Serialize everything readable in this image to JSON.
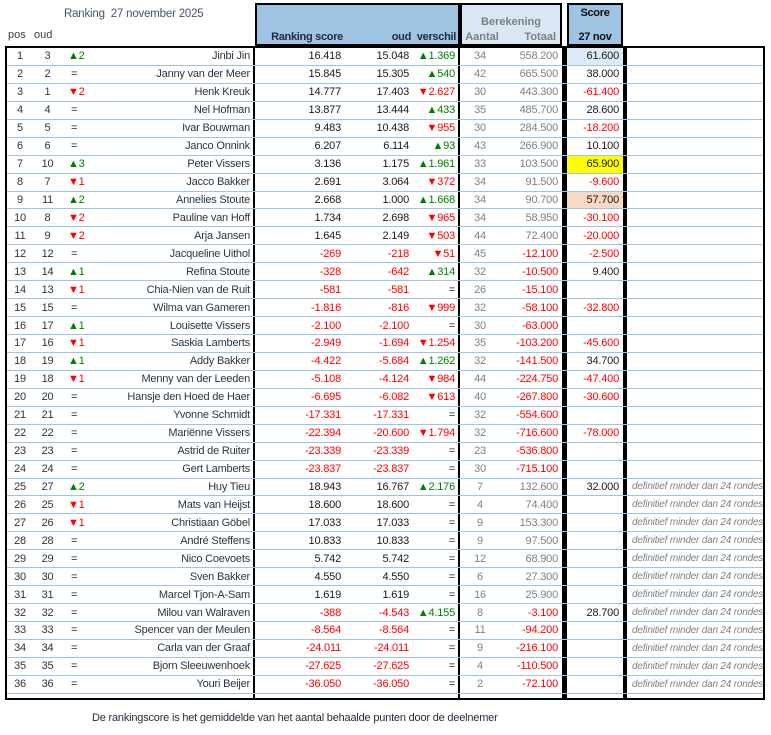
{
  "title": "Ranking  27 november 2025",
  "footer": "De rankingscore is het gemiddelde van het aantal behaalde punten door de deelnemer",
  "colors": {
    "header_blue": "#9fc3e3",
    "header_light_blue": "#d9e6f3",
    "grid_line_blue": "#9dc3e6",
    "negative_red": "#ff0000",
    "positive_green": "#008000",
    "muted_gray": "#7f7f7f",
    "highlight_yellow": "#ffff00",
    "highlight_peach": "#f8d9c4",
    "highlight_blue": "#dcebf7"
  },
  "table": {
    "corner_labels": {
      "pos": "pos",
      "oud": "oud"
    },
    "header_groups": {
      "scores": {
        "labels": [
          "Ranking score",
          "oud",
          "verschil"
        ]
      },
      "berekening": {
        "title": "Berekening",
        "labels": [
          "Aantal",
          "Totaal"
        ]
      },
      "score_col": {
        "line1": "Score",
        "line2": "27 nov"
      }
    },
    "rows": [
      {
        "pos": "1",
        "oud": "3",
        "change": "▲2",
        "name": "Jinbi Jin",
        "score": "16.418",
        "score_old": "15.048",
        "diff": "▲1.369",
        "aantal": "34",
        "totaal": "558.200",
        "score_27nov": "61.600",
        "highlight": "blue",
        "note": ""
      },
      {
        "pos": "2",
        "oud": "2",
        "change": "=",
        "name": "Janny van der Meer",
        "score": "15.845",
        "score_old": "15.305",
        "diff": "▲540",
        "aantal": "42",
        "totaal": "665.500",
        "score_27nov": "38.000",
        "highlight": "",
        "note": ""
      },
      {
        "pos": "3",
        "oud": "1",
        "change": "▼2",
        "name": "Henk Kreuk",
        "score": "14.777",
        "score_old": "17.403",
        "diff": "▼2.627",
        "aantal": "30",
        "totaal": "443.300",
        "score_27nov": "-61.400",
        "highlight": "",
        "note": ""
      },
      {
        "pos": "4",
        "oud": "4",
        "change": "=",
        "name": "Nel Hofman",
        "score": "13.877",
        "score_old": "13.444",
        "diff": "▲433",
        "aantal": "35",
        "totaal": "485.700",
        "score_27nov": "28.600",
        "highlight": "",
        "note": ""
      },
      {
        "pos": "5",
        "oud": "5",
        "change": "=",
        "name": "Ivar Bouwman",
        "score": "9.483",
        "score_old": "10.438",
        "diff": "▼955",
        "aantal": "30",
        "totaal": "284.500",
        "score_27nov": "-18.200",
        "highlight": "",
        "note": ""
      },
      {
        "pos": "6",
        "oud": "6",
        "change": "=",
        "name": "Janco Onnink",
        "score": "6.207",
        "score_old": "6.114",
        "diff": "▲93",
        "aantal": "43",
        "totaal": "266.900",
        "score_27nov": "10.100",
        "highlight": "",
        "note": ""
      },
      {
        "pos": "7",
        "oud": "10",
        "change": "▲3",
        "name": "Peter Vissers",
        "score": "3.136",
        "score_old": "1.175",
        "diff": "▲1.961",
        "aantal": "33",
        "totaal": "103.500",
        "score_27nov": "65.900",
        "highlight": "yellow",
        "note": ""
      },
      {
        "pos": "8",
        "oud": "7",
        "change": "▼1",
        "name": "Jacco Bakker",
        "score": "2.691",
        "score_old": "3.064",
        "diff": "▼372",
        "aantal": "34",
        "totaal": "91.500",
        "score_27nov": "-9.600",
        "highlight": "",
        "note": ""
      },
      {
        "pos": "9",
        "oud": "11",
        "change": "▲2",
        "name": "Annelies Stoute",
        "score": "2.668",
        "score_old": "1.000",
        "diff": "▲1.668",
        "aantal": "34",
        "totaal": "90.700",
        "score_27nov": "57.700",
        "highlight": "peach",
        "note": ""
      },
      {
        "pos": "10",
        "oud": "8",
        "change": "▼2",
        "name": "Pauline van Hoff",
        "score": "1.734",
        "score_old": "2.698",
        "diff": "▼965",
        "aantal": "34",
        "totaal": "58.950",
        "score_27nov": "-30.100",
        "highlight": "",
        "note": ""
      },
      {
        "pos": "11",
        "oud": "9",
        "change": "▼2",
        "name": "Arja Jansen",
        "score": "1.645",
        "score_old": "2.149",
        "diff": "▼503",
        "aantal": "44",
        "totaal": "72.400",
        "score_27nov": "-20.000",
        "highlight": "",
        "note": ""
      },
      {
        "pos": "12",
        "oud": "12",
        "change": "=",
        "name": "Jacqueline Uithol",
        "score": "-269",
        "score_old": "-218",
        "diff": "▼51",
        "aantal": "45",
        "totaal": "-12.100",
        "score_27nov": "-2.500",
        "highlight": "",
        "note": ""
      },
      {
        "pos": "13",
        "oud": "14",
        "change": "▲1",
        "name": "Refina Stoute",
        "score": "-328",
        "score_old": "-642",
        "diff": "▲314",
        "aantal": "32",
        "totaal": "-10.500",
        "score_27nov": "9.400",
        "highlight": "",
        "note": ""
      },
      {
        "pos": "14",
        "oud": "13",
        "change": "▼1",
        "name": "Chia-Nien van de Ruit",
        "score": "-581",
        "score_old": "-581",
        "diff": "=",
        "aantal": "26",
        "totaal": "-15.100",
        "score_27nov": "",
        "highlight": "",
        "note": ""
      },
      {
        "pos": "15",
        "oud": "15",
        "change": "=",
        "name": "Wilma van Gameren",
        "score": "-1.816",
        "score_old": "-816",
        "diff": "▼999",
        "aantal": "32",
        "totaal": "-58.100",
        "score_27nov": "-32.800",
        "highlight": "",
        "note": ""
      },
      {
        "pos": "16",
        "oud": "17",
        "change": "▲1",
        "name": "Louisette Vissers",
        "score": "-2.100",
        "score_old": "-2.100",
        "diff": "=",
        "aantal": "30",
        "totaal": "-63.000",
        "score_27nov": "",
        "highlight": "",
        "note": ""
      },
      {
        "pos": "17",
        "oud": "16",
        "change": "▼1",
        "name": "Saskia Lamberts",
        "score": "-2.949",
        "score_old": "-1.694",
        "diff": "▼1.254",
        "aantal": "35",
        "totaal": "-103.200",
        "score_27nov": "-45.600",
        "highlight": "",
        "note": ""
      },
      {
        "pos": "18",
        "oud": "19",
        "change": "▲1",
        "name": "Addy Bakker",
        "score": "-4.422",
        "score_old": "-5.684",
        "diff": "▲1.262",
        "aantal": "32",
        "totaal": "-141.500",
        "score_27nov": "34.700",
        "highlight": "",
        "note": ""
      },
      {
        "pos": "19",
        "oud": "18",
        "change": "▼1",
        "name": "Menny van der Leeden",
        "score": "-5.108",
        "score_old": "-4.124",
        "diff": "▼984",
        "aantal": "44",
        "totaal": "-224.750",
        "score_27nov": "-47.400",
        "highlight": "",
        "note": ""
      },
      {
        "pos": "20",
        "oud": "20",
        "change": "=",
        "name": "Hansje den Hoed de Haer",
        "score": "-6.695",
        "score_old": "-6.082",
        "diff": "▼613",
        "aantal": "40",
        "totaal": "-267.800",
        "score_27nov": "-30.600",
        "highlight": "",
        "note": ""
      },
      {
        "pos": "21",
        "oud": "21",
        "change": "=",
        "name": "Yvonne Schmidt",
        "score": "-17.331",
        "score_old": "-17.331",
        "diff": "=",
        "aantal": "32",
        "totaal": "-554.600",
        "score_27nov": "",
        "highlight": "",
        "note": ""
      },
      {
        "pos": "22",
        "oud": "22",
        "change": "=",
        "name": "Mariënne Vissers",
        "score": "-22.394",
        "score_old": "-20.600",
        "diff": "▼1.794",
        "aantal": "32",
        "totaal": "-716.600",
        "score_27nov": "-78.000",
        "highlight": "",
        "note": ""
      },
      {
        "pos": "23",
        "oud": "23",
        "change": "=",
        "name": "Astrid de Ruiter",
        "score": "-23.339",
        "score_old": "-23.339",
        "diff": "=",
        "aantal": "23",
        "totaal": "-536.800",
        "score_27nov": "",
        "highlight": "",
        "note": ""
      },
      {
        "pos": "24",
        "oud": "24",
        "change": "=",
        "name": "Gert Lamberts",
        "score": "-23.837",
        "score_old": "-23.837",
        "diff": "=",
        "aantal": "30",
        "totaal": "-715.100",
        "score_27nov": "",
        "highlight": "",
        "note": ""
      },
      {
        "pos": "25",
        "oud": "27",
        "change": "▲2",
        "name": "Huy Tieu",
        "score": "18.943",
        "score_old": "16.767",
        "diff": "▲2.176",
        "aantal": "7",
        "totaal": "132.600",
        "score_27nov": "32.000",
        "highlight": "",
        "note": "definitief minder dan 24 rondes"
      },
      {
        "pos": "26",
        "oud": "25",
        "change": "▼1",
        "name": "Mats van Heijst",
        "score": "18.600",
        "score_old": "18.600",
        "diff": "=",
        "aantal": "4",
        "totaal": "74.400",
        "score_27nov": "",
        "highlight": "",
        "note": "definitief minder dan 24 rondes"
      },
      {
        "pos": "27",
        "oud": "26",
        "change": "▼1",
        "name": "Christiaan Göbel",
        "score": "17.033",
        "score_old": "17.033",
        "diff": "=",
        "aantal": "9",
        "totaal": "153.300",
        "score_27nov": "",
        "highlight": "",
        "note": "definitief minder dan 24 rondes"
      },
      {
        "pos": "28",
        "oud": "28",
        "change": "=",
        "name": "André Steffens",
        "score": "10.833",
        "score_old": "10.833",
        "diff": "=",
        "aantal": "9",
        "totaal": "97.500",
        "score_27nov": "",
        "highlight": "",
        "note": "definitief minder dan 24 rondes"
      },
      {
        "pos": "29",
        "oud": "29",
        "change": "=",
        "name": "Nico Coevoets",
        "score": "5.742",
        "score_old": "5.742",
        "diff": "=",
        "aantal": "12",
        "totaal": "68.900",
        "score_27nov": "",
        "highlight": "",
        "note": "definitief minder dan 24 rondes"
      },
      {
        "pos": "30",
        "oud": "30",
        "change": "=",
        "name": "Sven Bakker",
        "score": "4.550",
        "score_old": "4.550",
        "diff": "=",
        "aantal": "6",
        "totaal": "27.300",
        "score_27nov": "",
        "highlight": "",
        "note": "definitief minder dan 24 rondes"
      },
      {
        "pos": "31",
        "oud": "31",
        "change": "=",
        "name": "Marcel Tjon-A-Sam",
        "score": "1.619",
        "score_old": "1.619",
        "diff": "=",
        "aantal": "16",
        "totaal": "25.900",
        "score_27nov": "",
        "highlight": "",
        "note": "definitief minder dan 24 rondes"
      },
      {
        "pos": "32",
        "oud": "32",
        "change": "=",
        "name": "Milou van Walraven",
        "score": "-388",
        "score_old": "-4.543",
        "diff": "▲4.155",
        "aantal": "8",
        "totaal": "-3.100",
        "score_27nov": "28.700",
        "highlight": "",
        "note": "definitief minder dan 24 rondes"
      },
      {
        "pos": "33",
        "oud": "33",
        "change": "=",
        "name": "Spencer van der Meulen",
        "score": "-8.564",
        "score_old": "-8.564",
        "diff": "=",
        "aantal": "11",
        "totaal": "-94.200",
        "score_27nov": "",
        "highlight": "",
        "note": "definitief minder dan 24 rondes"
      },
      {
        "pos": "34",
        "oud": "34",
        "change": "=",
        "name": "Carla van der Graaf",
        "score": "-24.011",
        "score_old": "-24.011",
        "diff": "=",
        "aantal": "9",
        "totaal": "-216.100",
        "score_27nov": "",
        "highlight": "",
        "note": "definitief minder dan 24 rondes"
      },
      {
        "pos": "35",
        "oud": "35",
        "change": "=",
        "name": "Bjorn Sleeuwenhoek",
        "score": "-27.625",
        "score_old": "-27.625",
        "diff": "=",
        "aantal": "4",
        "totaal": "-110.500",
        "score_27nov": "",
        "highlight": "",
        "note": "definitief minder dan 24 rondes"
      },
      {
        "pos": "36",
        "oud": "36",
        "change": "=",
        "name": "Youri Beijer",
        "score": "-36.050",
        "score_old": "-36.050",
        "diff": "=",
        "aantal": "2",
        "totaal": "-72.100",
        "score_27nov": "",
        "highlight": "",
        "note": "definitief minder dan 24 rondes"
      }
    ]
  }
}
